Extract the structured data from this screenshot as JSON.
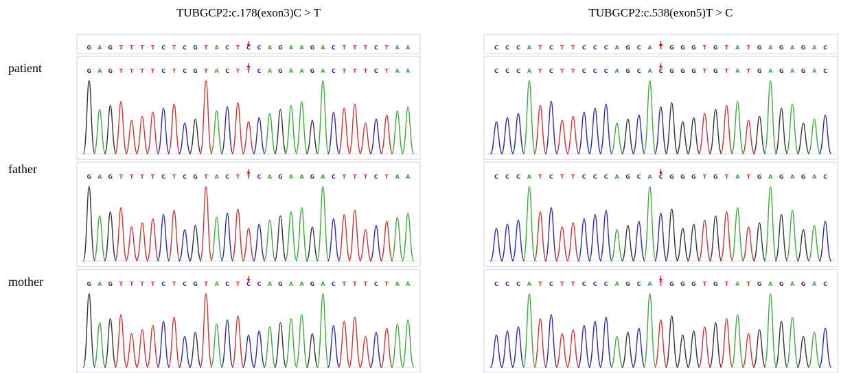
{
  "row_labels": [
    "patient",
    "father",
    "mother"
  ],
  "panels": [
    {
      "title": "TUBGCP2:c.178(exon3)C > T",
      "reference": "GAGTTTTCTCGTACTCCAGAAGACTTTCTAA",
      "rows": [
        "GAGTTTTCTCGTACTTCAGAAGACTTTCTAA",
        "GAGTTTTCTCGTACTTCAGAAGACTTTCTAA",
        "GAGTTTTCTCGTACTCCAGAAGACTTTCTAA"
      ]
    },
    {
      "title": "TUBGCP2:c.538(exon5)T > C",
      "reference": "CCCATCTTCCCAGCATGGGTGTATGAGAGAC",
      "rows": [
        "CCCATCTTCCCAGCACGGGTGTATGAGAGAC",
        "CCCATCTTCCCAGCACGGGTGTATGAGAGAC",
        "CCCATCTTCCCAGCATGGGTGTATGAGAGAC"
      ]
    }
  ]
}
